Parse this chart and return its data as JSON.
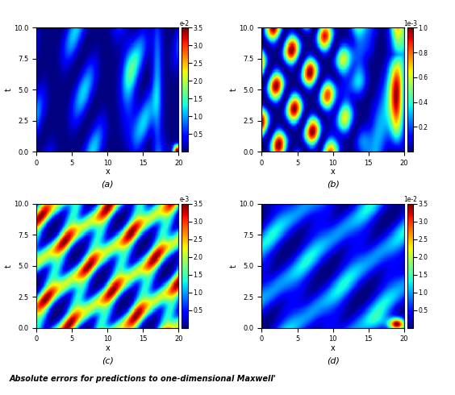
{
  "title_top": "",
  "xlabel": "x",
  "ylabel": "t",
  "x_range": [
    0,
    20
  ],
  "y_range": [
    0,
    10
  ],
  "x_ticks": [
    0,
    5,
    10,
    15,
    20
  ],
  "y_ticks": [
    0.0,
    2.5,
    5.0,
    7.5,
    10.0
  ],
  "subplot_labels": [
    "(a)",
    "(b)",
    "(c)",
    "(d)"
  ],
  "colorbar_labels": [
    "e-2",
    "1e-3",
    "e-3",
    "1e-2"
  ],
  "colorbar_ticks_a": [
    0.5,
    1.0,
    1.5,
    2.0,
    2.5,
    3.0,
    3.5
  ],
  "colorbar_ticks_b": [
    0.2,
    0.4,
    0.6,
    0.8,
    1.0
  ],
  "colorbar_ticks_c": [
    0.5,
    1.0,
    1.5,
    2.0,
    2.5,
    3.0,
    3.5
  ],
  "colorbar_ticks_d": [
    0.5,
    1.0,
    1.5,
    2.0,
    2.5,
    3.0,
    3.5
  ],
  "bottom_text": "Absolute errors for predictions to one-dimensional Maxwell'",
  "nx": 300,
  "ny": 150,
  "seed": 42
}
